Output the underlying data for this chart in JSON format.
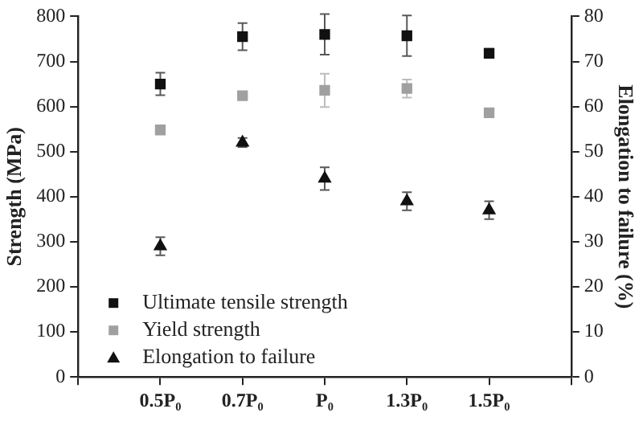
{
  "chart_data": {
    "type": "scatter",
    "ylabel": "Strength (MPa)",
    "y2label": "Elongation to failure (%)",
    "categories": [
      "0.5P₀",
      "0.7P₀",
      "P₀",
      "1.3P₀",
      "1.5P₀"
    ],
    "series": [
      {
        "name": "Ultimate tensile strength",
        "color": "#111111",
        "marker": "square",
        "values": [
          650,
          755,
          760,
          757,
          718
        ],
        "errors": [
          25,
          30,
          45,
          45,
          10
        ]
      },
      {
        "name": "Yield strength",
        "color": "#a0a0a0",
        "marker": "square",
        "values": [
          548,
          624,
          636,
          640,
          586
        ],
        "errors": [
          null,
          null,
          37,
          20,
          null
        ]
      },
      {
        "name": "Elongation to failure",
        "color": "#111111",
        "marker": "triangle",
        "axis": "y2",
        "values": [
          29,
          52,
          44,
          39,
          37
        ],
        "errors": [
          2,
          1,
          2.5,
          2,
          2
        ]
      }
    ],
    "ylim": [
      0,
      800
    ],
    "yticks": [
      0,
      100,
      200,
      300,
      400,
      500,
      600,
      700,
      800
    ],
    "y2lim": [
      0,
      80
    ],
    "y2ticks": [
      0,
      10,
      20,
      30,
      40,
      50,
      60,
      70,
      80
    ],
    "grid": false,
    "legend": "bottom left"
  }
}
